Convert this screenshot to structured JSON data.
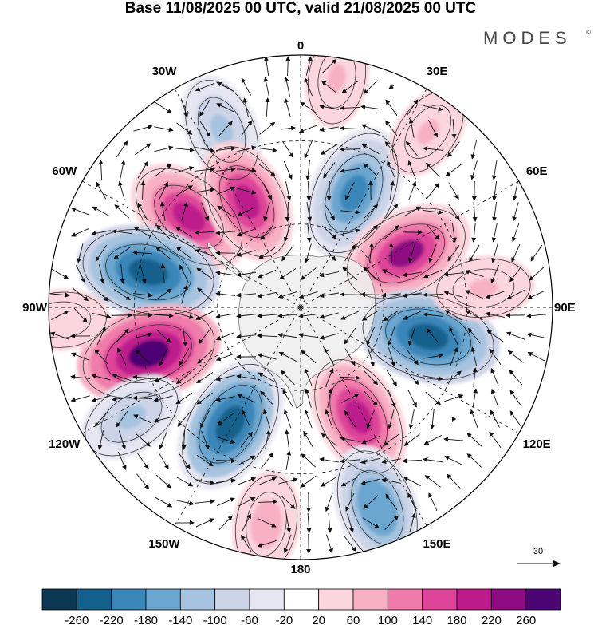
{
  "title": "Base 11/08/2025 00 UTC, valid 21/08/2025 00 UTC",
  "brand": {
    "name": "MODES",
    "mark": "©"
  },
  "projection": "south-polar-stereographic",
  "longitude_labels": [
    {
      "label": "0",
      "lon": 0
    },
    {
      "label": "30E",
      "lon": 30
    },
    {
      "label": "60E",
      "lon": 60
    },
    {
      "label": "90E",
      "lon": 90
    },
    {
      "label": "120E",
      "lon": 120
    },
    {
      "label": "150E",
      "lon": 150
    },
    {
      "label": "180",
      "lon": 180
    },
    {
      "label": "150W",
      "lon": -150
    },
    {
      "label": "120W",
      "lon": -120
    },
    {
      "label": "90W",
      "lon": -90
    },
    {
      "label": "60W",
      "lon": -60
    },
    {
      "label": "30W",
      "lon": -30
    }
  ],
  "colorbar": {
    "labels": [
      "-260",
      "-220",
      "-180",
      "-140",
      "-100",
      "-60",
      "-20",
      "20",
      "60",
      "100",
      "140",
      "180",
      "220",
      "260"
    ],
    "colors": [
      "#0b3752",
      "#14608d",
      "#3a86b9",
      "#6aa6cf",
      "#a6c3df",
      "#cdd4e8",
      "#e6e6f2",
      "#ffffff",
      "#fbd6dc",
      "#f7b1c2",
      "#ef7bab",
      "#de4499",
      "#bd1a8c",
      "#8e0b83",
      "#4d0473"
    ]
  },
  "vector_reference": {
    "label": "30",
    "value": 30
  },
  "anomaly_centers": [
    {
      "lon": -24,
      "r": 0.77,
      "value": -120
    },
    {
      "lon": -51,
      "r": 0.57,
      "value": 200
    },
    {
      "lon": -27,
      "r": 0.47,
      "value": 180
    },
    {
      "lon": 25,
      "r": 0.5,
      "value": -220
    },
    {
      "lon": 63,
      "r": 0.47,
      "value": 220
    },
    {
      "lon": -77,
      "r": 0.62,
      "value": -250
    },
    {
      "lon": -107,
      "r": 0.63,
      "value": 260
    },
    {
      "lon": 103,
      "r": 0.52,
      "value": -250
    },
    {
      "lon": -149,
      "r": 0.54,
      "value": -240
    },
    {
      "lon": 152,
      "r": 0.49,
      "value": 200
    },
    {
      "lon": 159,
      "r": 0.85,
      "value": -180
    },
    {
      "lon": -123,
      "r": 0.8,
      "value": -110
    },
    {
      "lon": -171,
      "r": 0.87,
      "value": 90
    },
    {
      "lon": 84,
      "r": 0.73,
      "value": 70
    },
    {
      "lon": 36,
      "r": 0.86,
      "value": 60
    },
    {
      "lon": -93,
      "r": 0.95,
      "value": 50
    },
    {
      "lon": 9,
      "r": 0.92,
      "value": 60
    }
  ]
}
